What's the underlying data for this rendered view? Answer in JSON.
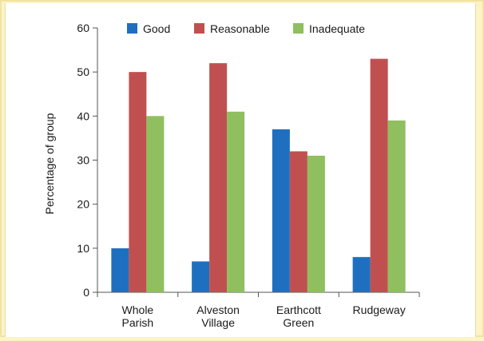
{
  "chart_data": {
    "type": "bar",
    "categories": [
      [
        "Whole",
        "Parish"
      ],
      [
        "Alveston",
        "Village"
      ],
      [
        "Earthcott",
        "Green"
      ],
      [
        "Rudgeway"
      ]
    ],
    "series": [
      {
        "name": "Good",
        "color": "#1f6fc0",
        "values": [
          10,
          7,
          37,
          8
        ]
      },
      {
        "name": "Reasonable",
        "color": "#c05050",
        "values": [
          50,
          52,
          32,
          53
        ]
      },
      {
        "name": "Inadequate",
        "color": "#8fbf5e",
        "values": [
          40,
          41,
          31,
          39
        ]
      }
    ],
    "ylabel": "Percentage of group",
    "xlabel": "",
    "ylim": [
      0,
      60
    ],
    "yticks": [
      0,
      10,
      20,
      30,
      40,
      50,
      60
    ],
    "grid": false,
    "legend": "top"
  }
}
